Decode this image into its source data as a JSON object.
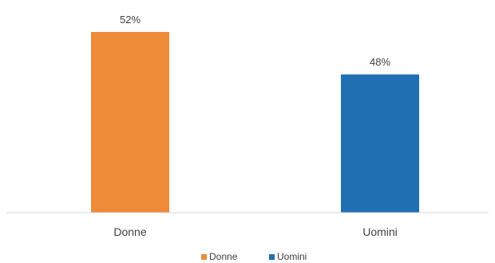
{
  "chart_data": {
    "type": "bar",
    "categories": [
      "Donne",
      "Uomini"
    ],
    "values": [
      52,
      48
    ],
    "value_labels": [
      "52%",
      "48%"
    ],
    "colors": [
      "#ED8B38",
      "#1F6FB2"
    ],
    "title": "",
    "xlabel": "",
    "ylabel": "",
    "ylim": [
      35,
      52
    ],
    "grid": false,
    "legend": {
      "position": "bottom",
      "entries": [
        {
          "label": "Donne",
          "color": "#ED8B38"
        },
        {
          "label": "Uomini",
          "color": "#1F6FB2"
        }
      ]
    }
  }
}
